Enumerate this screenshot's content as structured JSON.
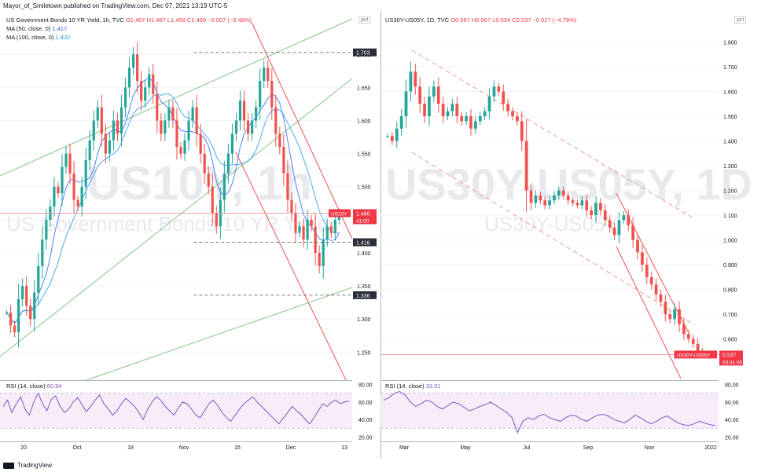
{
  "header": {
    "published_by": "Mayor_of_Smiletown published on TradingView.com, Dec 07, 2021 13:19 UTC-5"
  },
  "footer": {
    "brand": "TradingView"
  },
  "chart_data": [
    {
      "type": "candlestick",
      "title": "US Government Bonds 10 YR Yield, 1h, TVC",
      "watermark_symbol": "US10Y, 1h",
      "watermark_name": "US Government Bonds 10 YR Yield",
      "ohlc_text": "O1.467  H1.467  L1.458  C1.460  −0.007 (−0.48%)",
      "indicators": [
        {
          "label": "MA (50, close, 0)",
          "value": "1.417",
          "color": "#2962ff"
        },
        {
          "label": "MA (100, close, 0)",
          "value": "1.432",
          "color": "#2196f3"
        }
      ],
      "y_unit": "pct",
      "ylim": [
        1.21,
        1.73
      ],
      "y_ticks": [
        "1.700",
        "1.650",
        "1.600",
        "1.550",
        "1.500",
        "1.450",
        "1.400",
        "1.350",
        "1.300",
        "1.250"
      ],
      "x_ticks": [
        "20",
        "Oct",
        "18",
        "Nov",
        "15",
        "Dec",
        "13"
      ],
      "price_labels": [
        {
          "text": "1.703",
          "value": 1.703,
          "style": "dark"
        },
        {
          "text": "1.460",
          "value": 1.46,
          "style": "red",
          "tag": "US10Y",
          "sub": "41:00"
        },
        {
          "text": "1.416",
          "value": 1.416,
          "style": "dark"
        },
        {
          "text": "1.336",
          "value": 1.336,
          "style": "dark"
        }
      ],
      "close_series": [
        1.31,
        1.29,
        1.28,
        1.33,
        1.35,
        1.32,
        1.3,
        1.34,
        1.38,
        1.42,
        1.45,
        1.47,
        1.5,
        1.49,
        1.53,
        1.55,
        1.52,
        1.48,
        1.47,
        1.5,
        1.54,
        1.57,
        1.6,
        1.62,
        1.58,
        1.55,
        1.57,
        1.6,
        1.58,
        1.62,
        1.65,
        1.68,
        1.7,
        1.66,
        1.63,
        1.65,
        1.67,
        1.64,
        1.6,
        1.58,
        1.6,
        1.62,
        1.6,
        1.56,
        1.55,
        1.57,
        1.6,
        1.62,
        1.58,
        1.55,
        1.52,
        1.5,
        1.46,
        1.44,
        1.48,
        1.52,
        1.55,
        1.58,
        1.6,
        1.63,
        1.6,
        1.58,
        1.6,
        1.62,
        1.66,
        1.68,
        1.66,
        1.62,
        1.58,
        1.56,
        1.52,
        1.48,
        1.46,
        1.43,
        1.44,
        1.42,
        1.45,
        1.44,
        1.4,
        1.38,
        1.42,
        1.44,
        1.43,
        1.45,
        1.46
      ]
    },
    {
      "type": "candlestick",
      "title": "US30Y-US05Y, 1D, TVC",
      "watermark_symbol": "US30Y-US05Y, 1D",
      "watermark_name": "US30Y-US05Y",
      "ohlc_text": "O0.567  H0.567  L0.534  C0.537  −0.027 (−4.79%)",
      "y_unit": "pct",
      "ylim": [
        0.44,
        1.83
      ],
      "y_ticks": [
        "1.800",
        "1.700",
        "1.600",
        "1.500",
        "1.400",
        "1.300",
        "1.200",
        "1.100",
        "1.000",
        "0.900",
        "0.800",
        "0.700",
        "0.600"
      ],
      "x_ticks": [
        "Mar",
        "May",
        "Jul",
        "Sep",
        "Nov",
        "2022"
      ],
      "price_labels": [
        {
          "text": "0.537",
          "value": 0.537,
          "style": "red",
          "tag": "US30Y-US05Y",
          "sub": "03:41:00"
        }
      ],
      "close_series": [
        1.42,
        1.4,
        1.45,
        1.5,
        1.6,
        1.68,
        1.62,
        1.55,
        1.5,
        1.58,
        1.62,
        1.55,
        1.5,
        1.52,
        1.55,
        1.5,
        1.48,
        1.5,
        1.45,
        1.48,
        1.5,
        1.52,
        1.58,
        1.62,
        1.6,
        1.55,
        1.52,
        1.5,
        1.48,
        1.4,
        1.2,
        1.15,
        1.18,
        1.16,
        1.14,
        1.16,
        1.18,
        1.2,
        1.18,
        1.16,
        1.15,
        1.14,
        1.16,
        1.12,
        1.1,
        1.15,
        1.12,
        1.08,
        1.05,
        1.02,
        1.08,
        1.1,
        1.06,
        1.0,
        0.95,
        0.9,
        0.85,
        0.82,
        0.78,
        0.75,
        0.7,
        0.68,
        0.72,
        0.66,
        0.62,
        0.6,
        0.58,
        0.55,
        0.537
      ]
    }
  ],
  "rsi": [
    {
      "label": "RSI (14, close)",
      "value": "60.94",
      "ylim": [
        15,
        85
      ],
      "y_ticks": [
        "80.00",
        "60.00",
        "40.00",
        "20.00"
      ],
      "band": [
        30,
        70
      ],
      "values": [
        55,
        62,
        48,
        58,
        66,
        52,
        45,
        60,
        70,
        58,
        50,
        63,
        67,
        55,
        48,
        52,
        60,
        65,
        57,
        49,
        55,
        62,
        68,
        58,
        52,
        45,
        50,
        58,
        64,
        60,
        55,
        48,
        40,
        52,
        60,
        66,
        62,
        55,
        50,
        45,
        53,
        60,
        58,
        52,
        45,
        42,
        50,
        58,
        62,
        56,
        48,
        42,
        38,
        45,
        52,
        58,
        62,
        66,
        60,
        55,
        50,
        45,
        40,
        35,
        42,
        48,
        55,
        50,
        46,
        40,
        35,
        42,
        50,
        58,
        55,
        60,
        62,
        58,
        60,
        61
      ]
    },
    {
      "label": "RSI (14, close)",
      "value": "33.31",
      "ylim": [
        15,
        85
      ],
      "y_ticks": [
        "80.00",
        "60.00",
        "40.00",
        "20.00"
      ],
      "band": [
        30,
        70
      ],
      "values": [
        62,
        65,
        70,
        72,
        68,
        60,
        55,
        58,
        62,
        60,
        55,
        52,
        56,
        60,
        58,
        54,
        50,
        52,
        55,
        57,
        60,
        56,
        52,
        48,
        42,
        25,
        38,
        42,
        40,
        44,
        46,
        42,
        40,
        38,
        42,
        45,
        44,
        40,
        38,
        42,
        45,
        46,
        44,
        40,
        38,
        36,
        40,
        45,
        42,
        38,
        35,
        38,
        42,
        44,
        40,
        36,
        34,
        33,
        35,
        38,
        36,
        34,
        33
      ]
    }
  ]
}
